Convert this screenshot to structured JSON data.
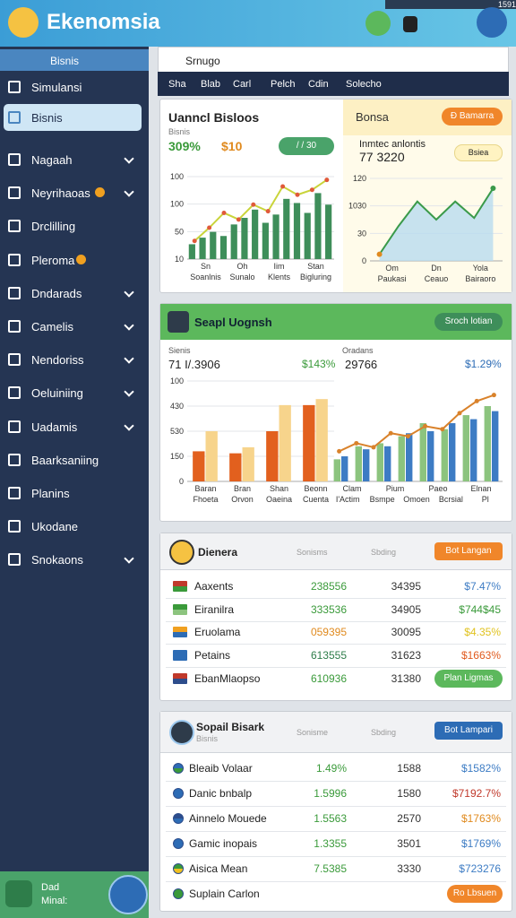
{
  "header": {
    "title": "Ekenomsia",
    "status": "1591"
  },
  "sidebar": {
    "search": "Bisnis",
    "items": [
      {
        "label": "Simulansi"
      },
      {
        "label": "Bisnis",
        "active": true
      },
      {
        "label": "Nagaah",
        "expandable": true
      },
      {
        "label": "Neyrihaoas",
        "expandable": true,
        "badge": true
      },
      {
        "label": "Drclilling"
      },
      {
        "label": "Pleroma",
        "badge": true
      },
      {
        "label": "Dndarads",
        "expandable": true
      },
      {
        "label": "Camelis",
        "expandable": true
      },
      {
        "label": "Nendoriss",
        "expandable": true
      },
      {
        "label": "Oeluiniing",
        "expandable": true
      },
      {
        "label": "Uadamis",
        "expandable": true
      },
      {
        "label": "Baarksaniing"
      },
      {
        "label": "Planins"
      },
      {
        "label": "Ukodane"
      },
      {
        "label": "Snokaons",
        "expandable": true
      }
    ],
    "footer": [
      "Dad",
      "Minal:"
    ]
  },
  "topbar": {
    "search": "Srnugo",
    "tabs": [
      "Sha",
      "Blab",
      "Carl",
      "Pelch",
      "Cdin",
      "Solecho"
    ]
  },
  "card1": {
    "title": "Uanncl Bisloos",
    "subtitle": "Bisnis",
    "stat_a": "309%",
    "stat_b": "$10",
    "pill": "/ / 30",
    "chart": {
      "ylim": [
        0,
        100
      ],
      "axis_labels": [
        "100",
        "100",
        "50",
        "10"
      ],
      "x_labels": [
        "Sn",
        "Oh",
        "Iim",
        "Stan"
      ],
      "x_labels_2": [
        "Soanlnis",
        "Sunalo",
        "Klents",
        "Bigluring"
      ],
      "series": [
        {
          "type": "bar",
          "color": "#3e8e5a",
          "values": [
            18,
            26,
            33,
            28,
            42,
            50,
            60,
            44,
            54,
            73,
            68,
            56,
            80,
            66
          ]
        },
        {
          "type": "line",
          "color": "#c9d43a",
          "marker": "#e05a3a",
          "values": [
            22,
            38,
            56,
            48,
            66,
            58,
            88,
            78,
            84,
            96
          ]
        }
      ]
    },
    "right_title": "Bonsa",
    "right_button": "Đ Bamarra",
    "right_label": "Inmtec anlontis",
    "right_value": "77 3220",
    "right_chip": "Bsiea",
    "right_chart": {
      "ylim": [
        0,
        100
      ],
      "axis_labels": [
        "120",
        "1030",
        "30",
        "0"
      ],
      "x_labels": [
        "Om",
        "Dn",
        "Yola"
      ],
      "x_labels_2": [
        "Paukasi",
        "Ceauo",
        "Bairaoro"
      ],
      "series": [
        {
          "type": "area",
          "color": "#3a9a4a",
          "fill": "#b9dcef",
          "values": [
            8,
            42,
            72,
            50,
            72,
            52,
            88
          ]
        }
      ]
    }
  },
  "card2": {
    "title": "Seapl Uognsh",
    "button": "Sroch lotian",
    "left_label": "Sienis",
    "left_value": "71 I/.3906",
    "left_change": "$143%",
    "left_chart": {
      "ylim": [
        0,
        100
      ],
      "axis_labels": [
        "100",
        "430",
        "530",
        "150",
        "0"
      ],
      "x_labels": [
        "Baran",
        "Bran",
        "Shan",
        "Beonn"
      ],
      "x_labels_2": [
        "Fhoeta",
        "Orvon",
        "Oaeina",
        "Cuenta"
      ],
      "series": [
        {
          "type": "bar",
          "color": "#e2601e",
          "values": [
            30,
            28,
            50,
            76
          ]
        },
        {
          "type": "bar",
          "color": "#f7d48c",
          "values": [
            50,
            34,
            76,
            82
          ]
        }
      ]
    },
    "right_label": "Oradans",
    "right_value": "29766",
    "right_change": "$1.29%",
    "right_chart": {
      "ylim": [
        0,
        100
      ],
      "axis_labels": [],
      "x_labels": [
        "Clam",
        "Pium",
        "Paeo",
        "Elnan"
      ],
      "x_labels_2": [
        "I'Actim",
        "Bsmpe",
        "Omoen",
        "Bcrsial",
        "Pl"
      ],
      "series": [
        {
          "type": "bar",
          "color": "#8cc47e",
          "values": [
            22,
            35,
            38,
            45,
            58,
            52,
            66,
            75
          ]
        },
        {
          "type": "bar",
          "color": "#3d7cc4",
          "values": [
            25,
            32,
            35,
            48,
            50,
            58,
            62,
            70
          ]
        },
        {
          "type": "line",
          "color": "#d9822b",
          "marker": "#d9822b",
          "values": [
            30,
            38,
            34,
            48,
            45,
            55,
            52,
            68,
            80,
            86
          ]
        }
      ]
    }
  },
  "card3": {
    "title": "Dienera",
    "col_a": "Sonisms",
    "col_b": "Sbding",
    "button": "Bot Langan",
    "rows": [
      {
        "name": "Aaxents",
        "cols": [
          "238556",
          "34395",
          "$7.47%"
        ],
        "colors": [
          "#3a9a3a",
          "#333",
          "#3d7cc4"
        ],
        "icon": [
          "#c0392b",
          "#3a9a3a"
        ]
      },
      {
        "name": "Eiranilra",
        "cols": [
          "333536",
          "34905",
          "$744$45"
        ],
        "colors": [
          "#3a9a3a",
          "#333",
          "#3a9a3a"
        ],
        "icon": [
          "#3a9a3a",
          "#8cc47e"
        ]
      },
      {
        "name": "Eruolama",
        "cols": [
          "059395",
          "30095",
          "$4.35%"
        ],
        "colors": [
          "#e08a1e",
          "#333",
          "#e0c21e"
        ],
        "icon": [
          "#f0a020",
          "#2d6cb5"
        ]
      },
      {
        "name": "Petains",
        "cols": [
          "613555",
          "31623",
          "$1663%"
        ],
        "colors": [
          "#2e7d4a",
          "#333",
          "#e05a1e"
        ],
        "icon": [
          "#2d6cb5",
          "#2d6cb5"
        ]
      },
      {
        "name": "EbanMlaopso",
        "cols": [
          "610936",
          "31380"
        ],
        "colors": [
          "#3a9a3a",
          "#333"
        ],
        "icon": [
          "#c0392b",
          "#2d4d8c"
        ],
        "button": "Plan Ligmas"
      }
    ]
  },
  "card4": {
    "title": "Sopail Bisark",
    "subtitle": "Bisnis",
    "col_a": "Sonisme",
    "col_b": "Sbding",
    "button": "Bot Lampari",
    "rows": [
      {
        "name": "Bleaib Volaar",
        "cols": [
          "1.49%",
          "1588",
          "$1582%"
        ],
        "colors": [
          "#3a9a3a",
          "#333",
          "#3d7cc4"
        ],
        "icon": [
          "#2d6cb5",
          "#3a9a3a"
        ]
      },
      {
        "name": "Danic bnbalp",
        "cols": [
          "1.5996",
          "1580",
          "$7192.7%"
        ],
        "colors": [
          "#3a9a3a",
          "#333",
          "#c0392b"
        ],
        "icon": [
          "#2d6cb5",
          "#2d6cb5"
        ]
      },
      {
        "name": "Ainnelo Mouede",
        "cols": [
          "1.5563",
          "2570",
          "$1763%"
        ],
        "colors": [
          "#3a9a3a",
          "#333",
          "#e08a1e"
        ],
        "icon": [
          "#2d4d8c",
          "#2d6cb5"
        ]
      },
      {
        "name": "Gamic inopais",
        "cols": [
          "1.3355",
          "3501",
          "$1769%"
        ],
        "colors": [
          "#3a9a3a",
          "#333",
          "#3d7cc4"
        ],
        "icon": [
          "#2d6cb5",
          "#2d6cb5"
        ]
      },
      {
        "name": "Aisica Mean",
        "cols": [
          "7.5385",
          "3330",
          "$723276"
        ],
        "colors": [
          "#3a9a3a",
          "#333",
          "#3d7cc4"
        ],
        "icon": [
          "#3a9a3a",
          "#f0c020"
        ]
      },
      {
        "name": "Suplain Carlon",
        "cols": [],
        "colors": [],
        "icon": [
          "#3a9a3a",
          "#3a9a3a"
        ],
        "button": "Ro Lbsuen"
      }
    ]
  }
}
